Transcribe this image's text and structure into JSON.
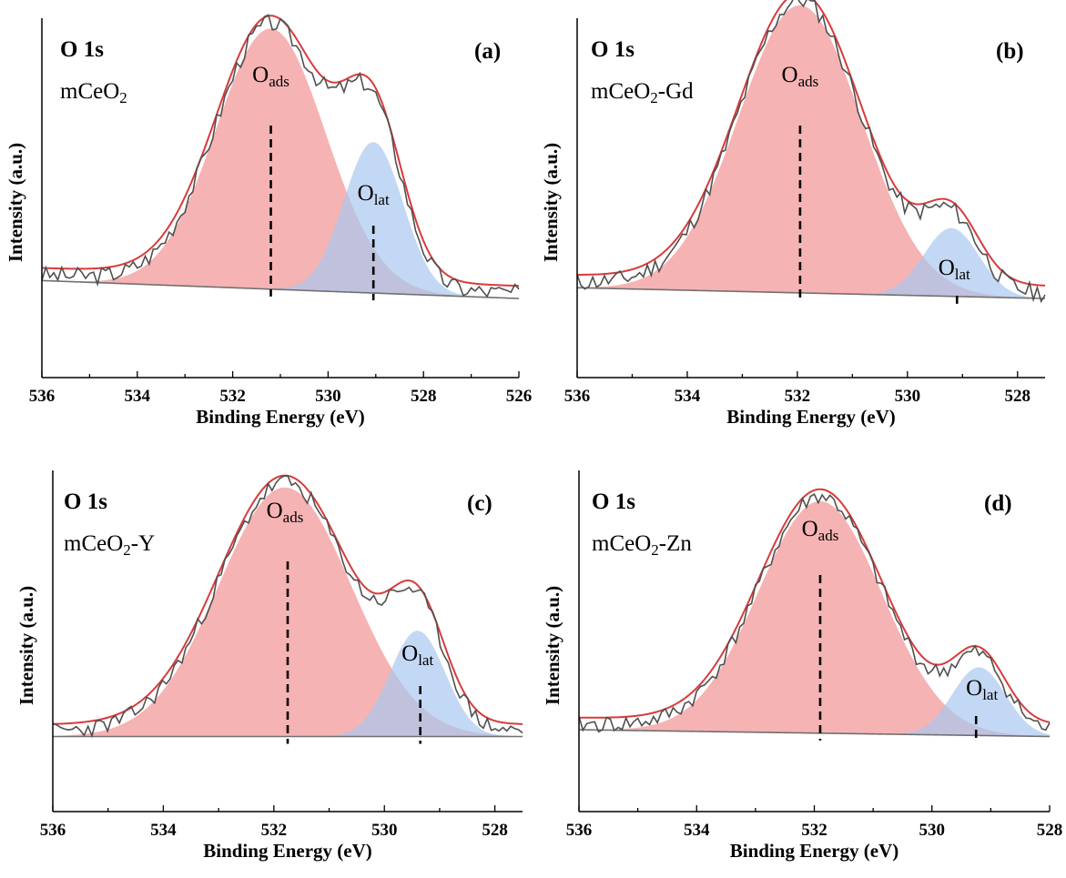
{
  "colors": {
    "oads_fill": "#f4a6a6",
    "olat_fill": "#a9c8ef",
    "overlap_fill": "#b99bc0",
    "envelope": "#d93a3a",
    "raw": "#505050",
    "baseline": "#707070"
  },
  "chart_data": [
    {
      "type": "line",
      "panel": "(a)",
      "region": "O 1s",
      "sample_base": "mCeO",
      "sample_sub": "2",
      "sample_suffix": "",
      "xlabel": "Binding Energy (eV)",
      "ylabel": "Intensity (a.u.)",
      "x_reversed": true,
      "xlim": [
        536,
        526
      ],
      "ylim": [
        0,
        1
      ],
      "xticks": [
        "536",
        "534",
        "532",
        "530",
        "528",
        "526"
      ],
      "peak_labels": [
        {
          "base": "O",
          "sub": "ads"
        },
        {
          "base": "O",
          "sub": "lat"
        }
      ],
      "baseline": [
        0.27,
        0.22
      ],
      "noise_seed": 3,
      "components": [
        {
          "name": "O",
          "sub": "ads",
          "center": 531.2,
          "height": 0.725,
          "sigma": 1.15
        },
        {
          "name": "O",
          "sub": "lat",
          "center": 529.05,
          "height": 0.42,
          "sigma": 0.62
        }
      ],
      "dashed_markers": [
        531.2,
        529.05
      ]
    },
    {
      "type": "line",
      "panel": "(b)",
      "region": "O 1s",
      "sample_base": "mCeO",
      "sample_sub": "2",
      "sample_suffix": "-Gd",
      "xlabel": "Binding Energy (eV)",
      "ylabel": "Intensity (a.u.)",
      "x_reversed": true,
      "xlim": [
        536,
        527.5
      ],
      "ylim": [
        0,
        1
      ],
      "xticks": [
        "536",
        "534",
        "532",
        "530",
        "528"
      ],
      "peak_labels": [
        {
          "base": "O",
          "sub": "ads"
        },
        {
          "base": "O",
          "sub": "lat"
        }
      ],
      "baseline": [
        0.25,
        0.22
      ],
      "noise_seed": 11,
      "components": [
        {
          "name": "O",
          "sub": "ads",
          "center": 531.95,
          "height": 0.8,
          "sigma": 1.12
        },
        {
          "name": "O",
          "sub": "lat",
          "center": 529.2,
          "height": 0.19,
          "sigma": 0.5
        }
      ],
      "dashed_markers": [
        531.95,
        529.1
      ]
    },
    {
      "type": "line",
      "panel": "(c)",
      "region": "O 1s",
      "sample_base": "mCeO",
      "sample_sub": "2",
      "sample_suffix": "-Y",
      "xlabel": "Binding Energy (eV)",
      "ylabel": "Intensity (a.u.)",
      "x_reversed": true,
      "xlim": [
        536,
        527.5
      ],
      "ylim": [
        0,
        1
      ],
      "xticks": [
        "536",
        "534",
        "532",
        "530",
        "528"
      ],
      "peak_labels": [
        {
          "base": "O",
          "sub": "ads"
        },
        {
          "base": "O",
          "sub": "lat"
        }
      ],
      "baseline": [
        0.22,
        0.22
      ],
      "noise_seed": 23,
      "components": [
        {
          "name": "O",
          "sub": "ads",
          "center": 531.8,
          "height": 0.73,
          "sigma": 1.2
        },
        {
          "name": "O",
          "sub": "lat",
          "center": 529.4,
          "height": 0.31,
          "sigma": 0.5
        }
      ],
      "dashed_markers": [
        531.75,
        529.35
      ]
    },
    {
      "type": "line",
      "panel": "(d)",
      "region": "O 1s",
      "sample_base": "mCeO",
      "sample_sub": "2",
      "sample_suffix": "-Zn",
      "xlabel": "Binding Energy (eV)",
      "ylabel": "Intensity (a.u.)",
      "x_reversed": true,
      "xlim": [
        536,
        528
      ],
      "ylim": [
        0,
        1
      ],
      "xticks": [
        "536",
        "534",
        "532",
        "530",
        "528"
      ],
      "peak_labels": [
        {
          "base": "O",
          "sub": "ads"
        },
        {
          "base": "O",
          "sub": "lat"
        }
      ],
      "baseline": [
        0.24,
        0.22
      ],
      "noise_seed": 41,
      "components": [
        {
          "name": "O",
          "sub": "ads",
          "center": 531.9,
          "height": 0.68,
          "sigma": 1.05
        },
        {
          "name": "O",
          "sub": "lat",
          "center": 529.2,
          "height": 0.2,
          "sigma": 0.45
        }
      ],
      "dashed_markers": [
        531.9,
        529.25
      ]
    }
  ]
}
